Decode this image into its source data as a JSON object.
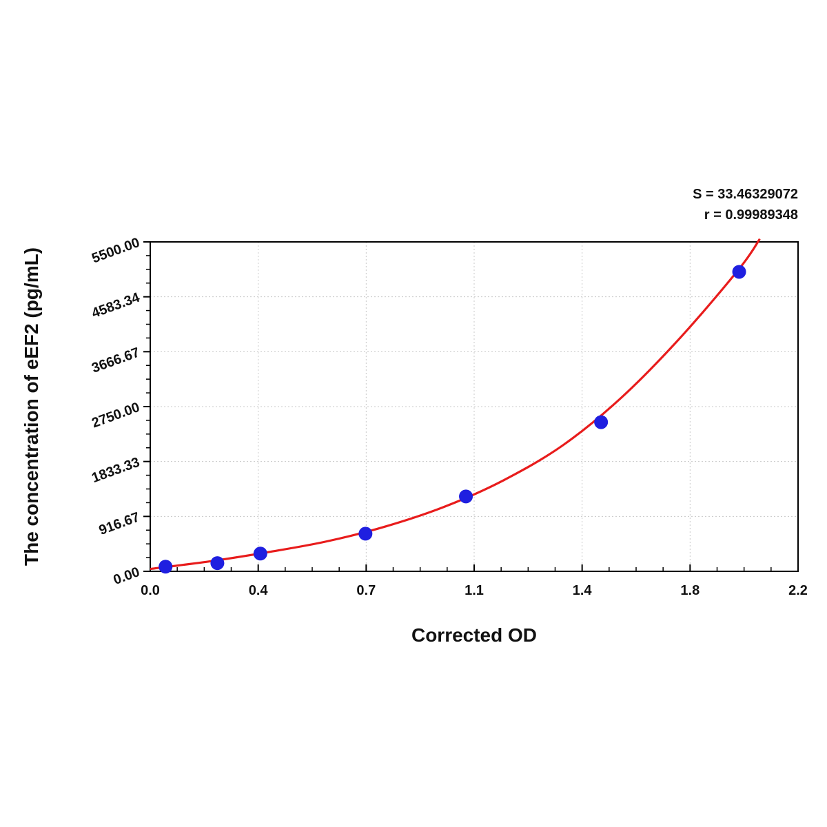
{
  "chart_data": {
    "type": "scatter",
    "title": "",
    "xlabel": "Corrected OD",
    "ylabel": "The concentration of eEF2 (pg/mL)",
    "xlim": [
      0.0,
      2.2
    ],
    "ylim": [
      0.0,
      5500.0
    ],
    "x_ticks": [
      "0.0",
      "0.4",
      "0.7",
      "1.1",
      "1.4",
      "1.8",
      "2.2"
    ],
    "y_ticks": [
      "0.00",
      "916.67",
      "1833.33",
      "2750.00",
      "3666.67",
      "4583.34",
      "5500.00"
    ],
    "grid": true,
    "stats": {
      "s_text": "S = 33.46329072",
      "r_text": "r = 0.99989348"
    },
    "points": {
      "x": [
        0.052,
        0.228,
        0.374,
        0.731,
        1.072,
        1.531,
        2.0
      ],
      "y": [
        78,
        137,
        296,
        628,
        1250,
        2490,
        5000
      ]
    },
    "fit_curve": {
      "x": [
        0.0,
        0.2,
        0.4,
        0.6,
        0.8,
        1.0,
        1.2,
        1.4,
        1.6,
        1.8,
        2.0,
        2.07
      ],
      "y": [
        40,
        165,
        320,
        500,
        750,
        1080,
        1520,
        2100,
        2900,
        3900,
        5050,
        5550
      ]
    },
    "colors": {
      "points": "#1f1fe0",
      "curve": "#e81c1c",
      "grid": "#c8c8c8",
      "axis": "#000000"
    }
  }
}
